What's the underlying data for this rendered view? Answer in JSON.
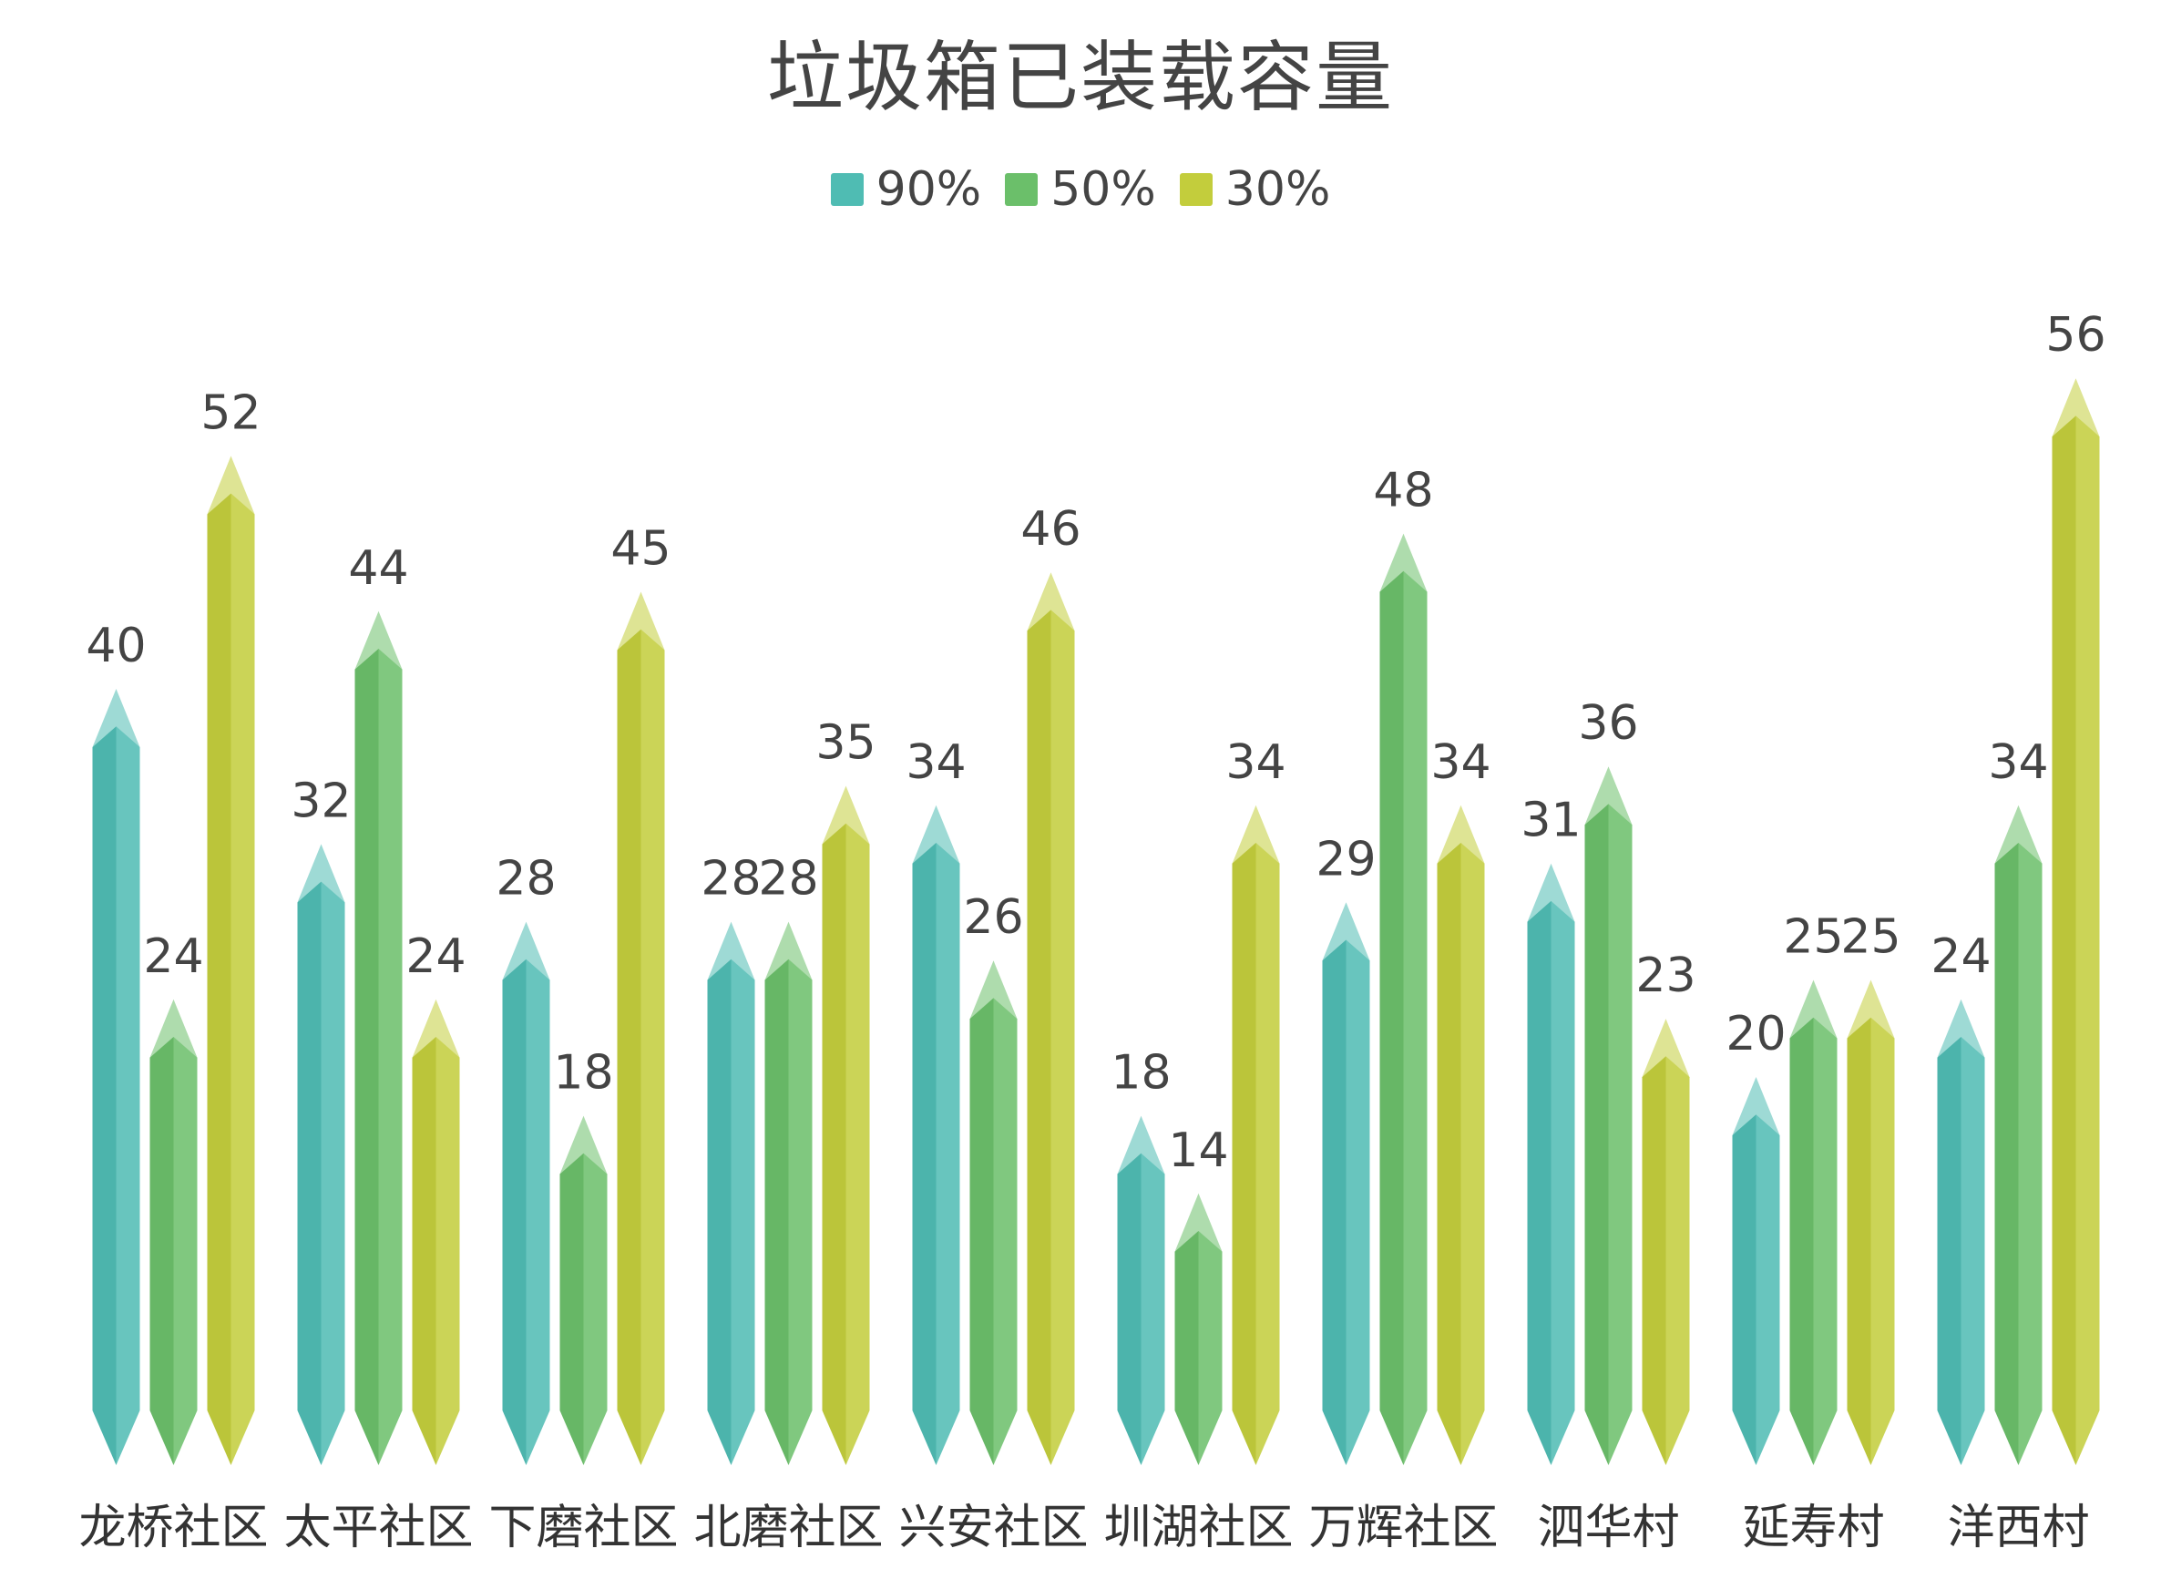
{
  "chart_data": {
    "type": "bar",
    "title": "垃圾箱已装载容量",
    "categories": [
      "龙桥社区",
      "太平社区",
      "下磨社区",
      "北磨社区",
      "兴安社区",
      "圳湖社区",
      "万辉社区",
      "泗华村",
      "延寿村",
      "洋西村"
    ],
    "series": [
      {
        "name": "90%",
        "color": "#4fbcb3",
        "values": [
          40,
          32,
          28,
          28,
          34,
          18,
          29,
          31,
          20,
          24
        ]
      },
      {
        "name": "50%",
        "color": "#6bbf6a",
        "values": [
          24,
          44,
          18,
          28,
          26,
          14,
          48,
          36,
          25,
          34
        ]
      },
      {
        "name": "30%",
        "color": "#c3cd3c",
        "values": [
          52,
          24,
          45,
          35,
          46,
          34,
          34,
          23,
          25,
          56
        ]
      }
    ],
    "legend_position": "top-center",
    "grid": false,
    "ylim": [
      0,
      56
    ]
  }
}
